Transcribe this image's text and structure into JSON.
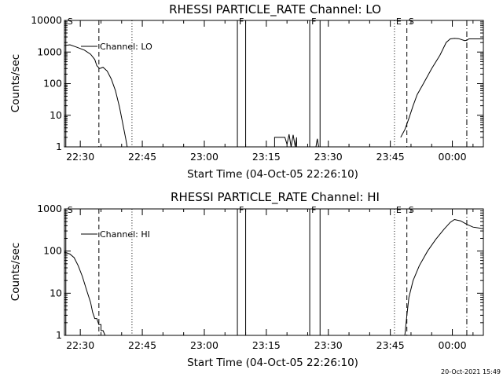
{
  "chart_data": [
    {
      "type": "line",
      "title": "RHESSI PARTICLE_RATE Channel: LO",
      "xlabel": "Start Time (04-Oct-05 22:26:10)",
      "ylabel": "Counts/sec",
      "yscale": "log",
      "ylim": [
        1,
        10000
      ],
      "xlim": [
        "22:26:10",
        "00:07:30"
      ],
      "yticks": [
        {
          "v": 1,
          "label": "1"
        },
        {
          "v": 10,
          "label": "10"
        },
        {
          "v": 100,
          "label": "100"
        },
        {
          "v": 1000,
          "label": "1000"
        },
        {
          "v": 10000,
          "label": "10000"
        }
      ],
      "xticks": [
        {
          "t": "22:30",
          "label": "22:30"
        },
        {
          "t": "22:45",
          "label": "22:45"
        },
        {
          "t": "23:00",
          "label": "23:00"
        },
        {
          "t": "23:15",
          "label": "23:15"
        },
        {
          "t": "23:30",
          "label": "23:30"
        },
        {
          "t": "23:45",
          "label": "23:45"
        },
        {
          "t": "00:00",
          "label": "00:00"
        }
      ],
      "legend": {
        "placement": "top-left",
        "label": "Channel: LO"
      },
      "grid": false,
      "event_lines": [
        {
          "t": "22:26:30",
          "style": "solid",
          "label": "S"
        },
        {
          "t": "22:34:30",
          "style": "dashed",
          "label": ""
        },
        {
          "t": "22:42:30",
          "style": "dotted",
          "label": ""
        },
        {
          "t": "23:08:00",
          "style": "solid",
          "label": "F"
        },
        {
          "t": "23:10:00",
          "style": "solid",
          "label": ""
        },
        {
          "t": "23:25:30",
          "style": "solid",
          "label": "F"
        },
        {
          "t": "23:28:00",
          "style": "solid",
          "label": ""
        },
        {
          "t": "23:46:00",
          "style": "dotted",
          "label": "E"
        },
        {
          "t": "23:49:00",
          "style": "dashed",
          "label": "S"
        },
        {
          "t": "00:03:30",
          "style": "dashdot",
          "label": ""
        }
      ],
      "series": [
        {
          "name": "Channel: LO",
          "segments": [
            {
              "x": [
                "22:26:10",
                "22:27:30",
                "22:29:00",
                "22:31:00",
                "22:32:30",
                "22:33:30",
                "22:34:00",
                "22:34:40",
                "22:35:30",
                "22:36:30",
                "22:37:30",
                "22:38:30",
                "22:39:30",
                "22:40:20",
                "22:41:00",
                "22:41:20"
              ],
              "y": [
                1600,
                1700,
                1450,
                1150,
                850,
                580,
                370,
                300,
                330,
                250,
                140,
                60,
                18,
                5,
                1.8,
                1
              ]
            },
            {
              "x": [
                "23:17:00",
                "23:17:00",
                "23:19:30",
                "23:20:00",
                "23:20:30",
                "23:21:00",
                "23:21:30",
                "23:22:00",
                "23:22:20",
                "23:22:20"
              ],
              "y": [
                1,
                2,
                2,
                1.2,
                2.5,
                1,
                2.4,
                1,
                2,
                1
              ]
            },
            {
              "x": [
                "23:27:00",
                "23:27:20",
                "23:27:40"
              ],
              "y": [
                1,
                1.8,
                1
              ]
            },
            {
              "x": [
                "23:47:30",
                "23:48:30",
                "23:49:30",
                "23:50:30",
                "23:51:30",
                "23:53:00",
                "23:55:00",
                "23:57:00",
                "23:58:30",
                "23:59:30",
                "00:00:30",
                "00:01:30",
                "00:03:00",
                "00:03:30",
                "00:04:00",
                "00:07:30"
              ],
              "y": [
                2,
                3.5,
                8,
                20,
                45,
                100,
                300,
                800,
                2000,
                2600,
                2700,
                2650,
                2300,
                2350,
                2600,
                2600
              ]
            }
          ]
        }
      ]
    },
    {
      "type": "line",
      "title": "RHESSI PARTICLE_RATE Channel: HI",
      "xlabel": "Start Time (04-Oct-05 22:26:10)",
      "ylabel": "Counts/sec",
      "yscale": "log",
      "ylim": [
        1,
        1000
      ],
      "xlim": [
        "22:26:10",
        "00:07:30"
      ],
      "yticks": [
        {
          "v": 1,
          "label": "1"
        },
        {
          "v": 10,
          "label": "10"
        },
        {
          "v": 100,
          "label": "100"
        },
        {
          "v": 1000,
          "label": "1000"
        }
      ],
      "xticks": [
        {
          "t": "22:30",
          "label": "22:30"
        },
        {
          "t": "22:45",
          "label": "22:45"
        },
        {
          "t": "23:00",
          "label": "23:00"
        },
        {
          "t": "23:15",
          "label": "23:15"
        },
        {
          "t": "23:30",
          "label": "23:30"
        },
        {
          "t": "23:45",
          "label": "23:45"
        },
        {
          "t": "00:00",
          "label": "00:00"
        }
      ],
      "legend": {
        "placement": "top-left",
        "label": "Channel: HI"
      },
      "grid": false,
      "event_lines": [
        {
          "t": "22:26:30",
          "style": "solid",
          "label": "S"
        },
        {
          "t": "22:34:30",
          "style": "dashed",
          "label": ""
        },
        {
          "t": "22:42:30",
          "style": "dotted",
          "label": ""
        },
        {
          "t": "23:08:00",
          "style": "solid",
          "label": "F"
        },
        {
          "t": "23:10:00",
          "style": "solid",
          "label": ""
        },
        {
          "t": "23:25:30",
          "style": "solid",
          "label": "F"
        },
        {
          "t": "23:28:00",
          "style": "solid",
          "label": ""
        },
        {
          "t": "23:46:00",
          "style": "dotted",
          "label": "E"
        },
        {
          "t": "23:49:00",
          "style": "dashed",
          "label": "S"
        },
        {
          "t": "00:03:30",
          "style": "dashdot",
          "label": ""
        }
      ],
      "series": [
        {
          "name": "Channel: HI",
          "segments": [
            {
              "x": [
                "22:26:10",
                "22:27:30",
                "22:28:30",
                "22:29:30",
                "22:30:30",
                "22:31:30",
                "22:32:30",
                "22:33:00",
                "22:33:30",
                "22:34:00",
                "22:34:30",
                "22:35:00",
                "22:35:00",
                "22:35:30",
                "22:36:00"
              ],
              "y": [
                95,
                85,
                70,
                45,
                25,
                12,
                6,
                3.5,
                2.5,
                2.5,
                1.8,
                1.8,
                1.3,
                1.3,
                1
              ]
            },
            {
              "x": [
                "23:48:30",
                "23:49:00",
                "23:49:30",
                "23:50:30",
                "23:52:00",
                "23:54:00",
                "23:56:00",
                "23:58:00",
                "23:59:30",
                "00:00:30",
                "00:02:00",
                "00:03:30",
                "00:05:00",
                "00:07:30"
              ],
              "y": [
                1,
                3,
                8,
                20,
                45,
                100,
                190,
                330,
                480,
                560,
                520,
                430,
                370,
                340
              ]
            }
          ]
        }
      ]
    }
  ],
  "footer": {
    "timestamp": "20-Oct-2021 15:49"
  }
}
